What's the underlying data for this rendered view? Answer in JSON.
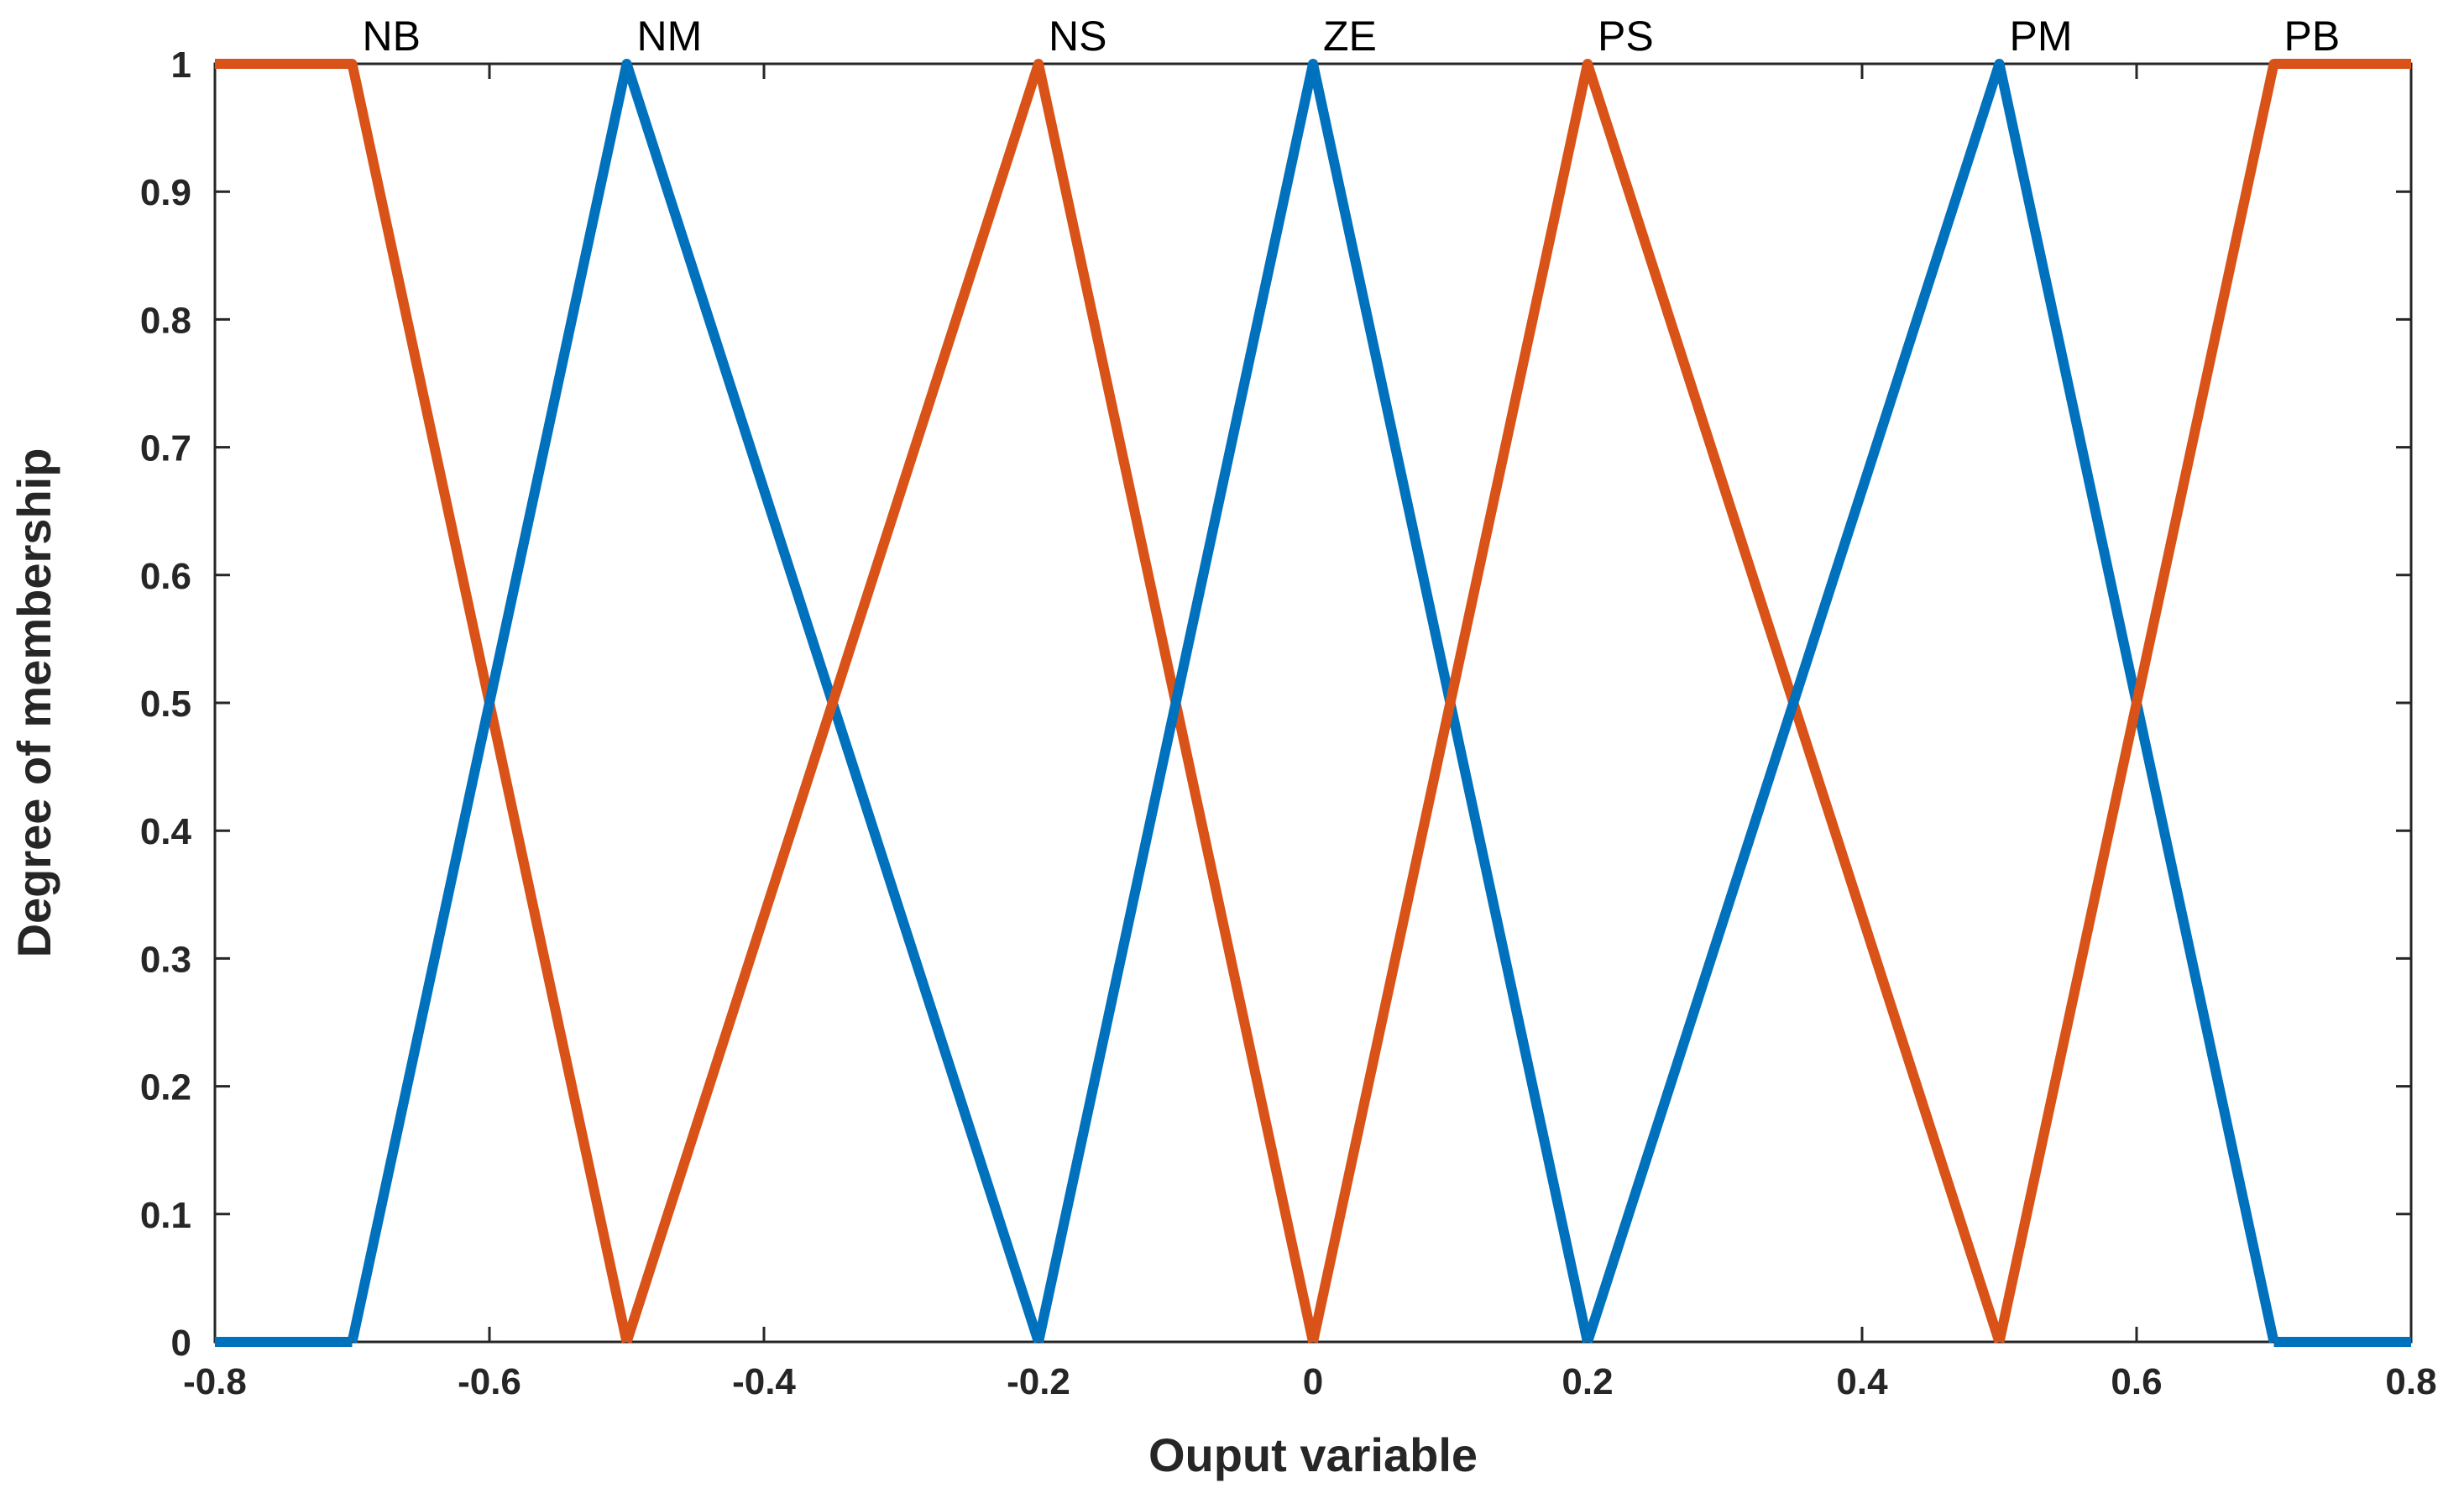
{
  "chart_data": {
    "type": "line",
    "title": "",
    "xlabel": "Ouput variable",
    "ylabel": "Degree of membership",
    "xlim": [
      -0.8,
      0.8
    ],
    "ylim": [
      0,
      1
    ],
    "x_ticks": [
      -0.8,
      -0.6,
      -0.4,
      -0.2,
      0,
      0.2,
      0.4,
      0.6,
      0.8
    ],
    "x_tick_labels": [
      "-0.8",
      "-0.6",
      "-0.4",
      "-0.2",
      "0",
      "0.2",
      "0.4",
      "0.6",
      "0.8"
    ],
    "y_ticks": [
      0,
      0.1,
      0.2,
      0.3,
      0.4,
      0.5,
      0.6,
      0.7,
      0.8,
      0.9,
      1
    ],
    "y_tick_labels": [
      "0",
      "0.1",
      "0.2",
      "0.3",
      "0.4",
      "0.5",
      "0.6",
      "0.7",
      "0.8",
      "0.9",
      "1"
    ],
    "grid": false,
    "series": [
      {
        "name": "NB",
        "color": "#D95319",
        "x": [
          -0.8,
          -0.7,
          -0.5
        ],
        "y": [
          1,
          1,
          0
        ],
        "label_x": -0.7
      },
      {
        "name": "NM",
        "color": "#0072BD",
        "x": [
          -0.7,
          -0.5,
          -0.2
        ],
        "y": [
          0,
          1,
          0
        ],
        "label_x": -0.5
      },
      {
        "name": "NS",
        "color": "#D95319",
        "x": [
          -0.5,
          -0.2,
          0
        ],
        "y": [
          0,
          1,
          0
        ],
        "label_x": -0.2
      },
      {
        "name": "ZE",
        "color": "#0072BD",
        "x": [
          -0.2,
          0,
          0.2
        ],
        "y": [
          0,
          1,
          0
        ],
        "label_x": 0
      },
      {
        "name": "PS",
        "color": "#D95319",
        "x": [
          0,
          0.2,
          0.5
        ],
        "y": [
          0,
          1,
          0
        ],
        "label_x": 0.2
      },
      {
        "name": "PM",
        "color": "#0072BD",
        "x": [
          0.2,
          0.5,
          0.7
        ],
        "y": [
          0,
          1,
          0
        ],
        "label_x": 0.5
      },
      {
        "name": "PB",
        "color": "#D95319",
        "x": [
          0.5,
          0.7,
          0.8
        ],
        "y": [
          0,
          1,
          1
        ],
        "label_x": 0.7
      }
    ],
    "extra_segments": [
      {
        "color": "#0072BD",
        "x": [
          -0.8,
          -0.7
        ],
        "y": [
          0,
          0
        ]
      },
      {
        "color": "#0072BD",
        "x": [
          0.7,
          0.8
        ],
        "y": [
          0,
          0
        ]
      }
    ]
  }
}
